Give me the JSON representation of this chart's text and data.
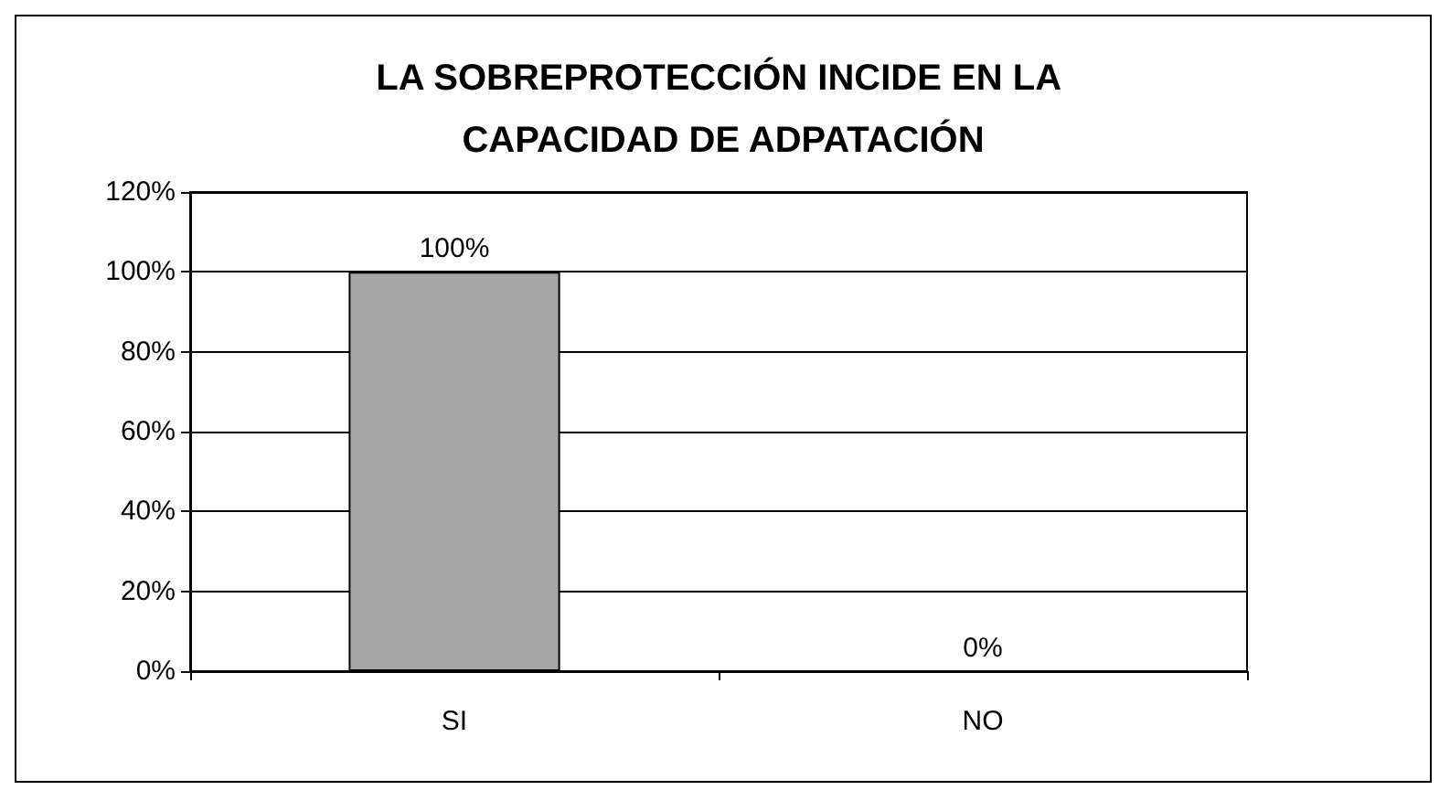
{
  "chart_data": {
    "type": "bar",
    "title": "LA SOBREPROTECCIÓN INCIDE EN LA CAPACIDAD DE ADPATACIÓN",
    "categories": [
      "SI",
      "NO"
    ],
    "values": [
      100,
      0
    ],
    "color": "#a6a6a6",
    "value_labels": [
      "100%",
      "0%"
    ],
    "ylim": [
      0,
      120
    ],
    "yticks": [
      {
        "value": 0,
        "label": "0%"
      },
      {
        "value": 20,
        "label": "20%"
      },
      {
        "value": 40,
        "label": "40%"
      },
      {
        "value": 60,
        "label": "60%"
      },
      {
        "value": 80,
        "label": "80%"
      },
      {
        "value": 100,
        "label": "100%"
      },
      {
        "value": 120,
        "label": "120%"
      }
    ],
    "grid": "y"
  }
}
